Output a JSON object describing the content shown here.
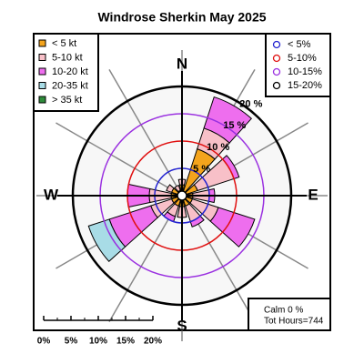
{
  "chart_data": {
    "type": "windrose",
    "title": "Windrose  Sherkin May 2025",
    "directions": [
      0,
      30,
      60,
      90,
      120,
      150,
      180,
      210,
      240,
      270,
      300,
      330
    ],
    "compass": [
      {
        "angle": 0,
        "label": "N"
      },
      {
        "angle": 90,
        "label": "E"
      },
      {
        "angle": 180,
        "label": "S"
      },
      {
        "angle": 270,
        "label": "W"
      }
    ],
    "series": [
      {
        "name": "< 5  kt",
        "color": "#f4a41c",
        "values": [
          2,
          9,
          3,
          2,
          2,
          2,
          2,
          2,
          2,
          2,
          2,
          1
        ]
      },
      {
        "name": "5-10 kt",
        "color": "#f8c0c8",
        "values": [
          1,
          4,
          7,
          3,
          5,
          3,
          2,
          2,
          4,
          4,
          1,
          1
        ]
      },
      {
        "name": "10-20 kt",
        "color": "#ee6eee",
        "values": [
          0,
          6,
          1,
          1,
          7,
          1,
          0,
          1,
          8,
          4,
          0,
          0
        ]
      },
      {
        "name": "20-35 kt",
        "color": "#a8dce6",
        "values": [
          0,
          0,
          0,
          0,
          0,
          0,
          0,
          0,
          4,
          0,
          0,
          0
        ]
      },
      {
        "name": " > 35 kt",
        "color": "#2e8b3a",
        "values": [
          0,
          0,
          0,
          0,
          0,
          0,
          0,
          0,
          0,
          0,
          0,
          0
        ]
      }
    ],
    "rlim": [
      0,
      20
    ],
    "rings": [
      {
        "value": 5,
        "label": "5 %",
        "color": "#2323d0"
      },
      {
        "value": 10,
        "label": "10 %",
        "color": "#e01010"
      },
      {
        "value": 15,
        "label": "15 %",
        "color": "#9a30e0"
      },
      {
        "value": 20,
        "label": "20 %",
        "color": "#000000"
      }
    ],
    "ring_legend": [
      "< 5%",
      "5-10%",
      "10-15%",
      "15-20%"
    ],
    "scale_ticks": [
      {
        "value": 0,
        "label": "0%"
      },
      {
        "value": 5,
        "label": "5%"
      },
      {
        "value": 10,
        "label": "10%"
      },
      {
        "value": 15,
        "label": "15%"
      },
      {
        "value": 20,
        "label": "20%"
      }
    ],
    "notes": [
      "Calm 0 %",
      "Tot Hours=744"
    ]
  }
}
